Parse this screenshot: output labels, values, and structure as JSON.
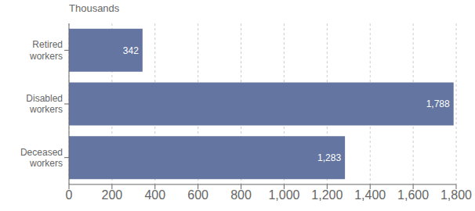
{
  "chart_data": {
    "type": "bar",
    "orientation": "horizontal",
    "xlabel": "Thousands",
    "categories": [
      "Deceased\nworkers",
      "Disabled\nworkers",
      "Retired\nworkers"
    ],
    "values": [
      1283,
      1788,
      342
    ],
    "value_labels": [
      "1,283",
      "1,788",
      "342"
    ],
    "data_labels": true,
    "color": "#6375a0",
    "xlim": [
      0,
      1800
    ],
    "xticks": [
      0,
      200,
      400,
      600,
      800,
      {
        "value": 1000,
        "label": "1,000"
      },
      {
        "value": 1200,
        "label": "1,200"
      },
      {
        "value": 1400,
        "label": "1,400"
      },
      {
        "value": 1600,
        "label": "1,600"
      },
      {
        "value": 1800,
        "label": "1,800"
      }
    ],
    "grid": true
  }
}
